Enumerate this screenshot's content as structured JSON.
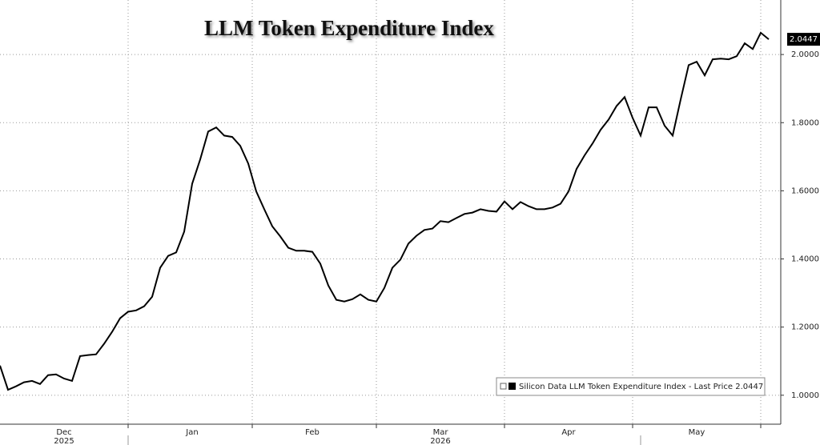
{
  "chart_data": {
    "type": "line",
    "title": "LLM Token Expenditure Index",
    "categories": [
      null,
      null,
      null,
      null,
      null,
      null,
      null,
      null,
      "Dec",
      null,
      null,
      null,
      null,
      null,
      null,
      null,
      null,
      null,
      null,
      null,
      null,
      null,
      null,
      null,
      "Jan",
      null,
      null,
      null,
      null,
      null,
      null,
      null,
      null,
      null,
      null,
      null,
      null,
      null,
      null,
      "Feb",
      null,
      null,
      null,
      null,
      null,
      null,
      null,
      null,
      null,
      null,
      null,
      null,
      null,
      null,
      null,
      "Mar",
      null,
      null,
      null,
      null,
      null,
      null,
      null,
      null,
      null,
      null,
      null,
      null,
      null,
      null,
      null,
      "Apr",
      null,
      null,
      null,
      null,
      null,
      null,
      null,
      null,
      null,
      null,
      null,
      null,
      null,
      null,
      null,
      "May",
      null,
      null,
      null,
      null,
      null,
      null,
      null,
      null,
      null
    ],
    "years": [
      null,
      null,
      null,
      null,
      null,
      null,
      null,
      null,
      "2025",
      null,
      null,
      null,
      null,
      null,
      null,
      null,
      null,
      null,
      null,
      null,
      null,
      null,
      null,
      null,
      null,
      null,
      null,
      null,
      null,
      null,
      null,
      null,
      null,
      null,
      null,
      null,
      null,
      null,
      null,
      null,
      null,
      null,
      null,
      null,
      null,
      null,
      null,
      null,
      null,
      null,
      null,
      null,
      null,
      null,
      null,
      "2026",
      null,
      null,
      null,
      null,
      null,
      null,
      null,
      null,
      null,
      null,
      null,
      null,
      null,
      null,
      null,
      null,
      null,
      null,
      null,
      null,
      null,
      null,
      null,
      null,
      null,
      null,
      null,
      null,
      null,
      null,
      null,
      null,
      null,
      null,
      null,
      null,
      null,
      null,
      null,
      null,
      null
    ],
    "series": [
      {
        "name": "Silicon Data LLM Token Expenditure Index - Last Price 2.0447",
        "color": "#000000",
        "values": [
          1.087,
          1.016,
          1.026,
          1.038,
          1.042,
          1.033,
          1.059,
          1.061,
          1.049,
          1.042,
          1.115,
          1.118,
          1.12,
          1.151,
          1.186,
          1.226,
          1.245,
          1.249,
          1.261,
          1.289,
          1.374,
          1.409,
          1.419,
          1.48,
          1.621,
          1.692,
          1.774,
          1.786,
          1.762,
          1.758,
          1.732,
          1.68,
          1.598,
          1.546,
          1.496,
          1.466,
          1.433,
          1.424,
          1.424,
          1.421,
          1.386,
          1.322,
          1.28,
          1.275,
          1.282,
          1.296,
          1.28,
          1.275,
          1.315,
          1.374,
          1.398,
          1.445,
          1.468,
          1.485,
          1.489,
          1.511,
          1.508,
          1.52,
          1.532,
          1.536,
          1.546,
          1.541,
          1.539,
          1.569,
          1.546,
          1.567,
          1.555,
          1.546,
          1.546,
          1.551,
          1.562,
          1.598,
          1.664,
          1.704,
          1.739,
          1.779,
          1.809,
          1.849,
          1.875,
          1.814,
          1.762,
          1.845,
          1.845,
          1.791,
          1.762,
          1.868,
          1.969,
          1.979,
          1.939,
          1.986,
          1.988,
          1.986,
          1.995,
          2.033,
          2.016,
          2.064,
          2.0447
        ]
      }
    ],
    "ylim": [
      0.915,
      2.16
    ],
    "yticks": [
      {
        "value": 1.0,
        "label": "1.0000"
      },
      {
        "value": 1.2,
        "label": "1.2000"
      },
      {
        "value": 1.4,
        "label": "1.4000"
      },
      {
        "value": 1.6,
        "label": "1.6000"
      },
      {
        "value": 1.8,
        "label": "1.8000"
      },
      {
        "value": 2.0,
        "label": "2.0000"
      }
    ],
    "grid": true
  }
}
